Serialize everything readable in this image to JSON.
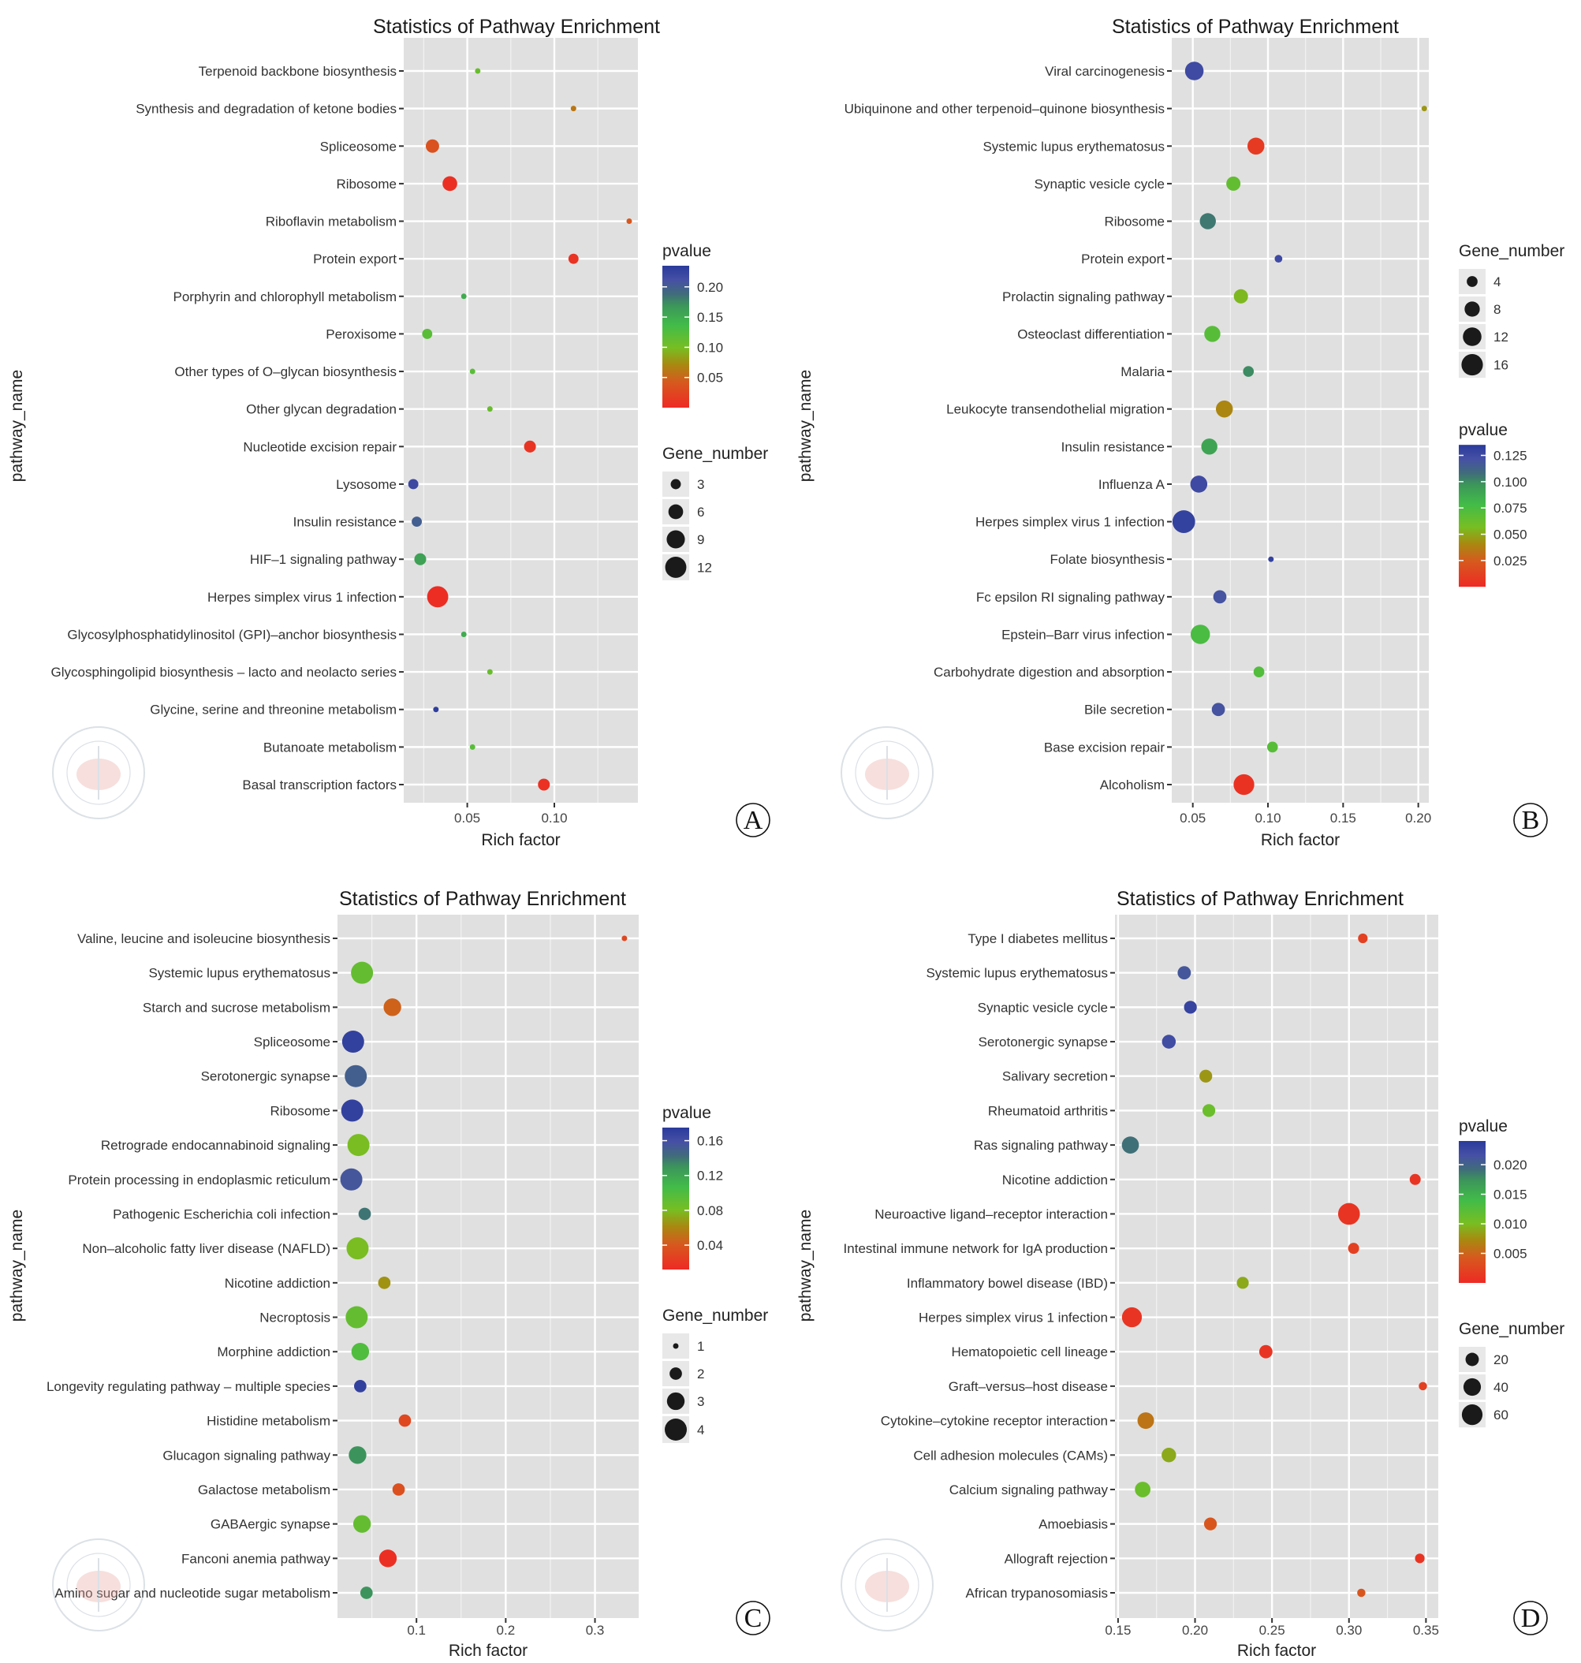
{
  "chart_data": [
    {
      "panel": "A",
      "type": "scatter",
      "title": "Statistics of Pathway Enrichment",
      "xlabel": "Rich factor",
      "ylabel": "pathway_name",
      "xlim": [
        0.0135,
        0.148
      ],
      "xticks": [
        0.05,
        0.1
      ],
      "xtick_labels": [
        "0.05",
        "0.10"
      ],
      "grid": true,
      "legend_order": [
        "pvalue",
        "Gene_number"
      ],
      "color_legend": {
        "title": "pvalue",
        "range": [
          0.0,
          0.235
        ],
        "ticks": [
          0.2,
          0.15,
          0.1,
          0.05
        ],
        "tick_labels": [
          "0.20",
          "0.15",
          "0.10",
          "0.05"
        ]
      },
      "size_legend": {
        "title": "Gene_number",
        "values": [
          3,
          6,
          9,
          12
        ],
        "range": [
          1,
          13
        ]
      },
      "points": [
        {
          "pathway": "Terpenoid backbone biosynthesis",
          "rich_factor": 0.056,
          "pvalue": 0.11,
          "gene_number": 1
        },
        {
          "pathway": "Synthesis and degradation of ketone bodies",
          "rich_factor": 0.111,
          "pvalue": 0.06,
          "gene_number": 1
        },
        {
          "pathway": "Spliceosome",
          "rich_factor": 0.03,
          "pvalue": 0.035,
          "gene_number": 5
        },
        {
          "pathway": "Ribosome",
          "rich_factor": 0.04,
          "pvalue": 0.005,
          "gene_number": 6
        },
        {
          "pathway": "Riboflavin metabolism",
          "rich_factor": 0.143,
          "pvalue": 0.04,
          "gene_number": 1
        },
        {
          "pathway": "Protein export",
          "rich_factor": 0.111,
          "pvalue": 0.008,
          "gene_number": 3
        },
        {
          "pathway": "Porphyrin and chlorophyll metabolism",
          "rich_factor": 0.048,
          "pvalue": 0.15,
          "gene_number": 1
        },
        {
          "pathway": "Peroxisome",
          "rich_factor": 0.027,
          "pvalue": 0.12,
          "gene_number": 3
        },
        {
          "pathway": "Other types of O-glycan biosynthesis",
          "rich_factor": 0.053,
          "pvalue": 0.12,
          "gene_number": 1
        },
        {
          "pathway": "Other glycan degradation",
          "rich_factor": 0.063,
          "pvalue": 0.11,
          "gene_number": 1
        },
        {
          "pathway": "Nucleotide excision repair",
          "rich_factor": 0.086,
          "pvalue": 0.01,
          "gene_number": 4
        },
        {
          "pathway": "Lysosome",
          "rich_factor": 0.019,
          "pvalue": 0.22,
          "gene_number": 3
        },
        {
          "pathway": "Insulin resistance",
          "rich_factor": 0.021,
          "pvalue": 0.2,
          "gene_number": 3
        },
        {
          "pathway": "HIF-1 signaling pathway",
          "rich_factor": 0.023,
          "pvalue": 0.16,
          "gene_number": 4
        },
        {
          "pathway": "Herpes simplex virus 1 infection",
          "rich_factor": 0.033,
          "pvalue": 0.003,
          "gene_number": 12
        },
        {
          "pathway": "Glycosylphosphatidylinositol (GPI)-anchor biosynthesis",
          "rich_factor": 0.048,
          "pvalue": 0.15,
          "gene_number": 1
        },
        {
          "pathway": "Glycosphingolipid biosynthesis - lacto and neolacto series",
          "rich_factor": 0.063,
          "pvalue": 0.11,
          "gene_number": 1
        },
        {
          "pathway": "Glycine, serine and threonine metabolism",
          "rich_factor": 0.032,
          "pvalue": 0.23,
          "gene_number": 1
        },
        {
          "pathway": "Butanoate metabolism",
          "rich_factor": 0.053,
          "pvalue": 0.12,
          "gene_number": 1
        },
        {
          "pathway": "Basal transcription factors",
          "rich_factor": 0.094,
          "pvalue": 0.006,
          "gene_number": 4
        }
      ]
    },
    {
      "panel": "B",
      "type": "scatter",
      "title": "Statistics of Pathway Enrichment",
      "xlabel": "Rich factor",
      "ylabel": "pathway_name",
      "xlim": [
        0.036,
        0.207
      ],
      "xticks": [
        0.05,
        0.1,
        0.15,
        0.2
      ],
      "xtick_labels": [
        "0.05",
        "0.10",
        "0.15",
        "0.20"
      ],
      "grid": true,
      "legend_order": [
        "Gene_number",
        "pvalue"
      ],
      "color_legend": {
        "title": "pvalue",
        "range": [
          0.0,
          0.135
        ],
        "ticks": [
          0.125,
          0.1,
          0.075,
          0.05,
          0.025
        ],
        "tick_labels": [
          "0.125",
          "0.100",
          "0.075",
          "0.050",
          "0.025"
        ]
      },
      "size_legend": {
        "title": "Gene_number",
        "values": [
          4,
          8,
          12,
          16
        ],
        "range": [
          1,
          17
        ]
      },
      "points": [
        {
          "pathway": "Viral carcinogenesis",
          "rich_factor": 0.051,
          "pvalue": 0.125,
          "gene_number": 12
        },
        {
          "pathway": "Ubiquinone and other terpenoid-quinone biosynthesis",
          "rich_factor": 0.204,
          "pvalue": 0.045,
          "gene_number": 1
        },
        {
          "pathway": "Systemic lupus erythematosus",
          "rich_factor": 0.092,
          "pvalue": 0.008,
          "gene_number": 10
        },
        {
          "pathway": "Synaptic vesicle cycle",
          "rich_factor": 0.077,
          "pvalue": 0.065,
          "gene_number": 7
        },
        {
          "pathway": "Ribosome",
          "rich_factor": 0.06,
          "pvalue": 0.105,
          "gene_number": 9
        },
        {
          "pathway": "Protein export",
          "rich_factor": 0.107,
          "pvalue": 0.125,
          "gene_number": 2
        },
        {
          "pathway": "Prolactin signaling pathway",
          "rich_factor": 0.082,
          "pvalue": 0.055,
          "gene_number": 7
        },
        {
          "pathway": "Osteoclast differentiation",
          "rich_factor": 0.063,
          "pvalue": 0.07,
          "gene_number": 9
        },
        {
          "pathway": "Malaria",
          "rich_factor": 0.087,
          "pvalue": 0.1,
          "gene_number": 4
        },
        {
          "pathway": "Leukocyte transendothelial migration",
          "rich_factor": 0.071,
          "pvalue": 0.04,
          "gene_number": 10
        },
        {
          "pathway": "Insulin resistance",
          "rich_factor": 0.061,
          "pvalue": 0.09,
          "gene_number": 9
        },
        {
          "pathway": "Influenza A",
          "rich_factor": 0.054,
          "pvalue": 0.125,
          "gene_number": 10
        },
        {
          "pathway": "Herpes simplex virus 1 infection",
          "rich_factor": 0.044,
          "pvalue": 0.13,
          "gene_number": 18
        },
        {
          "pathway": "Folate biosynthesis",
          "rich_factor": 0.102,
          "pvalue": 0.13,
          "gene_number": 1
        },
        {
          "pathway": "Fc epsilon RI signaling pathway",
          "rich_factor": 0.068,
          "pvalue": 0.12,
          "gene_number": 6
        },
        {
          "pathway": "Epstein-Barr virus infection",
          "rich_factor": 0.055,
          "pvalue": 0.075,
          "gene_number": 13
        },
        {
          "pathway": "Carbohydrate digestion and absorption",
          "rich_factor": 0.094,
          "pvalue": 0.072,
          "gene_number": 4
        },
        {
          "pathway": "Bile secretion",
          "rich_factor": 0.067,
          "pvalue": 0.12,
          "gene_number": 6
        },
        {
          "pathway": "Base excision repair",
          "rich_factor": 0.103,
          "pvalue": 0.07,
          "gene_number": 4
        },
        {
          "pathway": "Alcoholism",
          "rich_factor": 0.084,
          "pvalue": 0.004,
          "gene_number": 15
        }
      ]
    },
    {
      "panel": "C",
      "type": "scatter",
      "title": "Statistics of Pathway Enrichment",
      "xlabel": "Rich factor",
      "ylabel": "pathway_name",
      "xlim": [
        0.0115,
        0.349
      ],
      "xticks": [
        0.1,
        0.2,
        0.3
      ],
      "xtick_labels": [
        "0.1",
        "0.2",
        "0.3"
      ],
      "grid": true,
      "legend_order": [
        "pvalue",
        "Gene_number"
      ],
      "color_legend": {
        "title": "pvalue",
        "range": [
          0.012,
          0.175
        ],
        "ticks": [
          0.16,
          0.12,
          0.08,
          0.04
        ],
        "tick_labels": [
          "0.16",
          "0.12",
          "0.08",
          "0.04"
        ]
      },
      "size_legend": {
        "title": "Gene_number",
        "values": [
          1,
          2,
          3,
          4
        ],
        "range": [
          1,
          4
        ]
      },
      "points": [
        {
          "pathway": "Valine, leucine and isoleucine biosynthesis",
          "rich_factor": 0.333,
          "pvalue": 0.03,
          "gene_number": 1
        },
        {
          "pathway": "Systemic lupus erythematosus",
          "rich_factor": 0.039,
          "pvalue": 0.09,
          "gene_number": 4
        },
        {
          "pathway": "Starch and sucrose metabolism",
          "rich_factor": 0.073,
          "pvalue": 0.045,
          "gene_number": 3
        },
        {
          "pathway": "Spliceosome",
          "rich_factor": 0.029,
          "pvalue": 0.17,
          "gene_number": 4
        },
        {
          "pathway": "Serotonergic synapse",
          "rich_factor": 0.032,
          "pvalue": 0.15,
          "gene_number": 4
        },
        {
          "pathway": "Ribosome",
          "rich_factor": 0.028,
          "pvalue": 0.17,
          "gene_number": 4
        },
        {
          "pathway": "Retrograde endocannabinoid signaling",
          "rich_factor": 0.035,
          "pvalue": 0.08,
          "gene_number": 4
        },
        {
          "pathway": "Protein processing in endoplasmic reticulum",
          "rich_factor": 0.027,
          "pvalue": 0.155,
          "gene_number": 4
        },
        {
          "pathway": "Pathogenic Escherichia coli infection",
          "rich_factor": 0.042,
          "pvalue": 0.14,
          "gene_number": 2
        },
        {
          "pathway": "Non-alcoholic fatty liver disease (NAFLD)",
          "rich_factor": 0.034,
          "pvalue": 0.08,
          "gene_number": 4
        },
        {
          "pathway": "Nicotine addiction",
          "rich_factor": 0.064,
          "pvalue": 0.065,
          "gene_number": 2
        },
        {
          "pathway": "Necroptosis",
          "rich_factor": 0.033,
          "pvalue": 0.09,
          "gene_number": 4
        },
        {
          "pathway": "Morphine addiction",
          "rich_factor": 0.037,
          "pvalue": 0.1,
          "gene_number": 3
        },
        {
          "pathway": "Longevity regulating pathway - multiple species",
          "rich_factor": 0.037,
          "pvalue": 0.17,
          "gene_number": 2
        },
        {
          "pathway": "Histidine metabolism",
          "rich_factor": 0.087,
          "pvalue": 0.03,
          "gene_number": 2
        },
        {
          "pathway": "Glucagon signaling pathway",
          "rich_factor": 0.034,
          "pvalue": 0.13,
          "gene_number": 3
        },
        {
          "pathway": "Galactose metabolism",
          "rich_factor": 0.08,
          "pvalue": 0.035,
          "gene_number": 2
        },
        {
          "pathway": "GABAergic synapse",
          "rich_factor": 0.039,
          "pvalue": 0.09,
          "gene_number": 3
        },
        {
          "pathway": "Fanconi anemia pathway",
          "rich_factor": 0.068,
          "pvalue": 0.015,
          "gene_number": 3
        },
        {
          "pathway": "Amino sugar and nucleotide sugar metabolism",
          "rich_factor": 0.044,
          "pvalue": 0.13,
          "gene_number": 2
        }
      ]
    },
    {
      "panel": "D",
      "type": "scatter",
      "title": "Statistics of Pathway Enrichment",
      "xlabel": "Rich factor",
      "ylabel": "pathway_name",
      "xlim": [
        0.148,
        0.358
      ],
      "xticks": [
        0.15,
        0.2,
        0.25,
        0.3,
        0.35
      ],
      "xtick_labels": [
        "0.15",
        "0.20",
        "0.25",
        "0.30",
        "0.35"
      ],
      "grid": true,
      "legend_order": [
        "pvalue",
        "Gene_number"
      ],
      "color_legend": {
        "title": "pvalue",
        "range": [
          0.0,
          0.024
        ],
        "ticks": [
          0.02,
          0.015,
          0.01,
          0.005
        ],
        "tick_labels": [
          "0.020",
          "0.015",
          "0.010",
          "0.005"
        ]
      },
      "size_legend": {
        "title": "Gene_number",
        "values": [
          20,
          40,
          60
        ],
        "range": [
          1,
          70
        ]
      },
      "points": [
        {
          "pathway": "Type I diabetes mellitus",
          "rich_factor": 0.309,
          "pvalue": 0.002,
          "gene_number": 8
        },
        {
          "pathway": "Systemic lupus erythematosus",
          "rich_factor": 0.193,
          "pvalue": 0.021,
          "gene_number": 20
        },
        {
          "pathway": "Synaptic vesicle cycle",
          "rich_factor": 0.197,
          "pvalue": 0.023,
          "gene_number": 18
        },
        {
          "pathway": "Serotonergic synapse",
          "rich_factor": 0.183,
          "pvalue": 0.022,
          "gene_number": 22
        },
        {
          "pathway": "Salivary secretion",
          "rich_factor": 0.207,
          "pvalue": 0.008,
          "gene_number": 18
        },
        {
          "pathway": "Rheumatoid arthritis",
          "rich_factor": 0.209,
          "pvalue": 0.011,
          "gene_number": 18
        },
        {
          "pathway": "Ras signaling pathway",
          "rich_factor": 0.158,
          "pvalue": 0.019,
          "gene_number": 38
        },
        {
          "pathway": "Nicotine addiction",
          "rich_factor": 0.343,
          "pvalue": 0.001,
          "gene_number": 12
        },
        {
          "pathway": "Neuroactive ligand-receptor interaction",
          "rich_factor": 0.3,
          "pvalue": 0.001,
          "gene_number": 68
        },
        {
          "pathway": "Intestinal immune network for IgA production",
          "rich_factor": 0.303,
          "pvalue": 0.002,
          "gene_number": 12
        },
        {
          "pathway": "Inflammatory bowel disease (IBD)",
          "rich_factor": 0.231,
          "pvalue": 0.009,
          "gene_number": 15
        },
        {
          "pathway": "Herpes simplex virus 1 infection",
          "rich_factor": 0.159,
          "pvalue": 0.001,
          "gene_number": 55
        },
        {
          "pathway": "Hematopoietic cell lineage",
          "rich_factor": 0.246,
          "pvalue": 0.001,
          "gene_number": 20
        },
        {
          "pathway": "Graft-versus-host disease",
          "rich_factor": 0.348,
          "pvalue": 0.002,
          "gene_number": 5
        },
        {
          "pathway": "Cytokine-cytokine receptor interaction",
          "rich_factor": 0.168,
          "pvalue": 0.006,
          "gene_number": 35
        },
        {
          "pathway": "Cell adhesion molecules (CAMs)",
          "rich_factor": 0.183,
          "pvalue": 0.009,
          "gene_number": 25
        },
        {
          "pathway": "Calcium signaling pathway",
          "rich_factor": 0.166,
          "pvalue": 0.011,
          "gene_number": 30
        },
        {
          "pathway": "Amoebiasis",
          "rich_factor": 0.21,
          "pvalue": 0.004,
          "gene_number": 18
        },
        {
          "pathway": "Allograft rejection",
          "rich_factor": 0.346,
          "pvalue": 0.001,
          "gene_number": 8
        },
        {
          "pathway": "African trypanosomiasis",
          "rich_factor": 0.308,
          "pvalue": 0.004,
          "gene_number": 5
        }
      ]
    }
  ],
  "colorscale": {
    "low": "#ee2a24",
    "mid_low": "#b08a10",
    "mid": "#62c02a",
    "mid_high": "#40b85a",
    "mid_high2": "#3b7a6a",
    "high": "#2b3a9c"
  },
  "panel_labels": [
    "A",
    "B",
    "C",
    "D"
  ]
}
